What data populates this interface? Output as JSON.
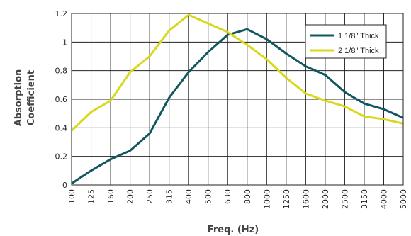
{
  "chart_data": {
    "type": "line",
    "title": "",
    "xlabel": "Freq. (Hz)",
    "ylabel_lines": [
      "Absorption",
      "Coefficient"
    ],
    "x": [
      "100",
      "125",
      "160",
      "200",
      "250",
      "315",
      "400",
      "500",
      "630",
      "800",
      "1000",
      "1250",
      "1600",
      "2000",
      "2500",
      "3150",
      "4000",
      "5000"
    ],
    "ylim": [
      0,
      1.2
    ],
    "yticks": [
      "0",
      "0.2",
      "0.4",
      "0.6",
      "0.8",
      "1",
      "1.2"
    ],
    "grid": true,
    "legend_position": "top-right",
    "series": [
      {
        "name": "1 1/8\" Thick",
        "color": "#10575f",
        "values": [
          0.01,
          0.1,
          0.18,
          0.24,
          0.36,
          0.61,
          0.79,
          0.93,
          1.05,
          1.09,
          1.02,
          0.92,
          0.83,
          0.77,
          0.65,
          0.57,
          0.53,
          0.47
        ]
      },
      {
        "name": "2 1/8\" Thick",
        "color": "#d9d91c",
        "values": [
          0.38,
          0.51,
          0.59,
          0.79,
          0.9,
          1.08,
          1.19,
          1.13,
          1.07,
          0.98,
          0.88,
          0.75,
          0.64,
          0.59,
          0.55,
          0.48,
          0.46,
          0.43
        ]
      }
    ]
  }
}
